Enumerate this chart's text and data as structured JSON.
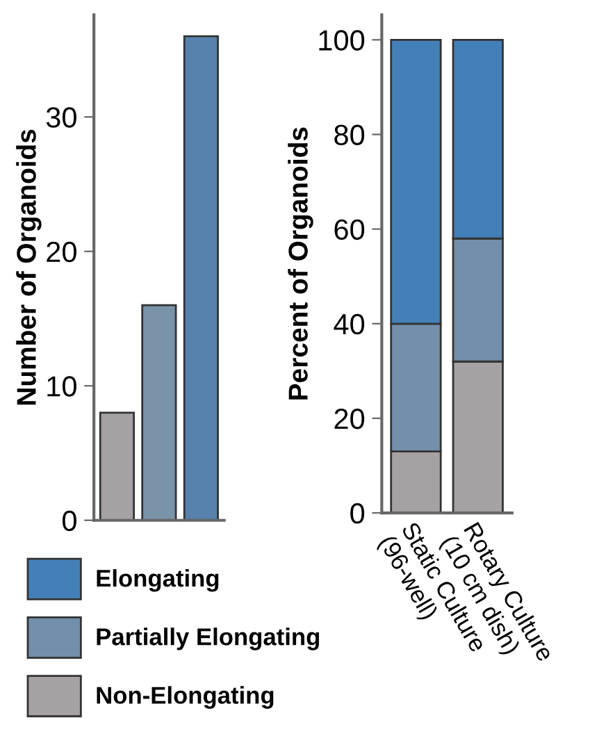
{
  "chart_data": [
    {
      "type": "bar",
      "categories": [
        null,
        null,
        null
      ],
      "values": [
        8,
        16,
        36
      ],
      "colors": [
        "#a6a2a3",
        "#7b93a9",
        "#5682ad"
      ],
      "ylabel": "Number of Organoids",
      "ylim": [
        0,
        37.6
      ],
      "yticks": [
        0,
        10,
        20,
        30
      ],
      "grid": false,
      "legend": false
    },
    {
      "type": "bar",
      "stacked": true,
      "categories": [
        "Static Culture\n(96-well)",
        "Rotary Culture\n(10 cm dish)"
      ],
      "ylabel": "Percent of Organoids",
      "ylim": [
        0,
        105.3
      ],
      "yticks": [
        0,
        20,
        40,
        60,
        80,
        100
      ],
      "grid": false,
      "legend": "bottom",
      "series": [
        {
          "name": "Non-Elongating",
          "color": "#a6a2a3",
          "values": [
            13,
            32
          ]
        },
        {
          "name": "Partially Elongating",
          "color": "#7290ac",
          "values": [
            27,
            26
          ]
        },
        {
          "name": "Elongating",
          "color": "#4480b8",
          "values": [
            60,
            42
          ]
        }
      ]
    }
  ]
}
